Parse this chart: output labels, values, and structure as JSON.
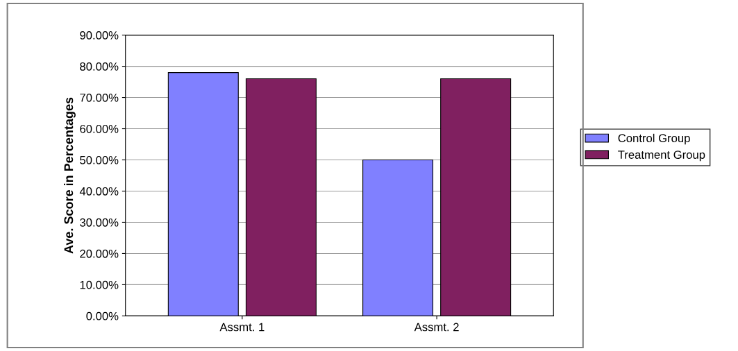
{
  "chart_data": {
    "type": "bar",
    "ylabel": "Ave. Score in Percentages",
    "categories": [
      "Assmt. 1",
      "Assmt. 2"
    ],
    "series": [
      {
        "name": "Control Group",
        "color": "#8080ff",
        "values": [
          78,
          50
        ]
      },
      {
        "name": "Treatment Group",
        "color": "#802060",
        "values": [
          76,
          76
        ]
      }
    ],
    "ylim": [
      0,
      90
    ],
    "yticks": [
      {
        "value": 0,
        "label": "0.00%"
      },
      {
        "value": 10,
        "label": "10.00%"
      },
      {
        "value": 20,
        "label": "20.00%"
      },
      {
        "value": 30,
        "label": "30.00%"
      },
      {
        "value": 40,
        "label": "40.00%"
      },
      {
        "value": 50,
        "label": "50.00%"
      },
      {
        "value": 60,
        "label": "60.00%"
      },
      {
        "value": 70,
        "label": "70.00%"
      },
      {
        "value": 80,
        "label": "80.00%"
      },
      {
        "value": 90,
        "label": "90.00%"
      }
    ],
    "grid": "y",
    "legend": "right"
  }
}
